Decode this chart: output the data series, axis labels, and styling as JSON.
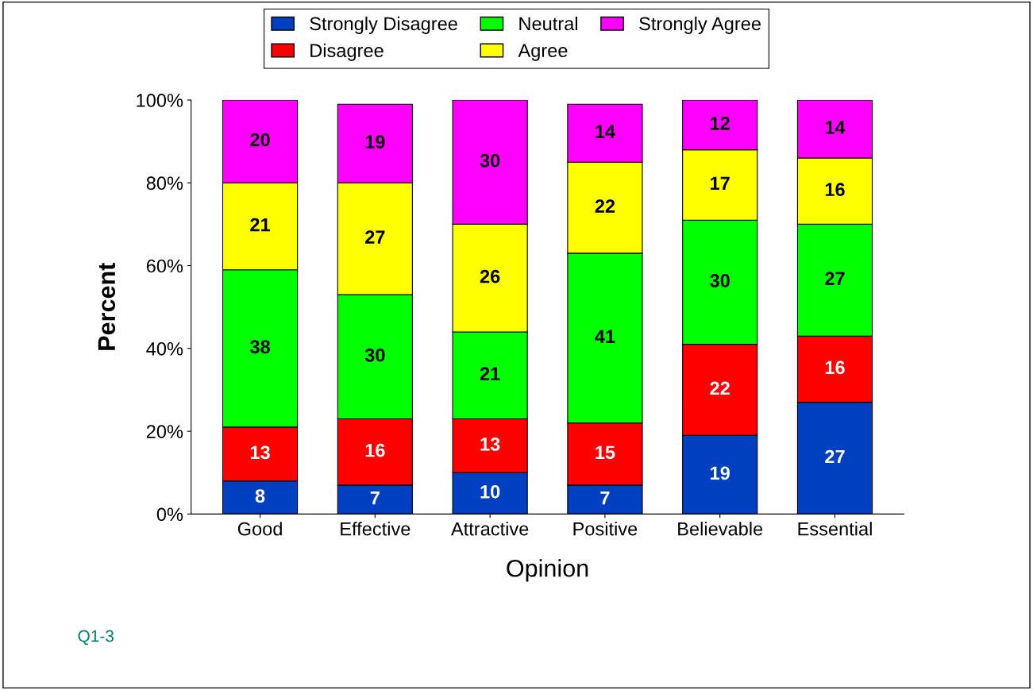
{
  "chart_data": {
    "type": "bar",
    "stacked": true,
    "xlabel": "Opinion",
    "ylabel": "Percent",
    "categories": [
      "Good",
      "Effective",
      "Attractive",
      "Positive",
      "Believable",
      "Essential"
    ],
    "series": [
      {
        "name": "Strongly Disagree",
        "color": "#0040c0",
        "values": [
          8,
          7,
          10,
          7,
          19,
          27
        ]
      },
      {
        "name": "Disagree",
        "color": "#ff0000",
        "values": [
          13,
          16,
          13,
          15,
          22,
          16
        ]
      },
      {
        "name": "Neutral",
        "color": "#00ff00",
        "values": [
          38,
          30,
          21,
          41,
          30,
          27
        ]
      },
      {
        "name": "Agree",
        "color": "#ffff00",
        "values": [
          21,
          27,
          26,
          22,
          17,
          16
        ]
      },
      {
        "name": "Strongly Agree",
        "color": "#ff00ff",
        "values": [
          20,
          19,
          30,
          14,
          12,
          14
        ]
      }
    ],
    "ylim": [
      0,
      100
    ],
    "yticks": [
      {
        "value": 0,
        "label": "0%"
      },
      {
        "value": 20,
        "label": "20%"
      },
      {
        "value": 40,
        "label": "40%"
      },
      {
        "value": 60,
        "label": "60%"
      },
      {
        "value": 80,
        "label": "80%"
      },
      {
        "value": 100,
        "label": "100%"
      }
    ],
    "data_labels": true,
    "legend": "top",
    "grid": false,
    "annotations": [
      "Q1-3"
    ]
  }
}
